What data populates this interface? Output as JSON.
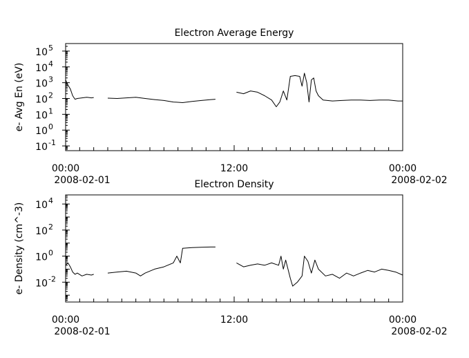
{
  "chart_data": [
    {
      "type": "line",
      "title": "Electron Average Energy",
      "ylabel": "e- Avg En (eV)",
      "yscale": "log",
      "ylim": [
        0.05,
        300000
      ],
      "yticks": [
        {
          "value": 0.1,
          "base": "10",
          "exp": "-1"
        },
        {
          "value": 1,
          "base": "10",
          "exp": "0"
        },
        {
          "value": 10,
          "base": "10",
          "exp": "1"
        },
        {
          "value": 100,
          "base": "10",
          "exp": "2"
        },
        {
          "value": 1000,
          "base": "10",
          "exp": "3"
        },
        {
          "value": 10000,
          "base": "10",
          "exp": "4"
        },
        {
          "value": 100000,
          "base": "10",
          "exp": "5"
        }
      ],
      "xlim": [
        "2008-02-01T00:00",
        "2008-02-02T00:00"
      ],
      "xticks": [
        {
          "value": "2008-02-01T00:00",
          "time": "00:00",
          "date": "2008-02-01"
        },
        {
          "value": "2008-02-01T12:00",
          "time": "12:00",
          "date": ""
        },
        {
          "value": "2008-02-02T00:00",
          "time": "00:00",
          "date": "2008-02-02"
        }
      ],
      "series": [
        {
          "values": [
            [
              "2008-02-01T00:00",
              1500
            ],
            [
              "2008-02-01T00:10",
              700
            ],
            [
              "2008-02-01T00:20",
              400
            ],
            [
              "2008-02-01T00:30",
              150
            ],
            [
              "2008-02-01T00:40",
              90
            ],
            [
              "2008-02-01T00:50",
              100
            ],
            [
              "2008-02-01T01:10",
              110
            ],
            [
              "2008-02-01T01:30",
              120
            ],
            [
              "2008-02-01T01:50",
              110
            ],
            [
              "2008-02-01T02:00",
              115
            ]
          ]
        },
        {
          "values": [
            [
              "2008-02-01T03:00",
              105
            ],
            [
              "2008-02-01T03:40",
              100
            ],
            [
              "2008-02-01T04:20",
              110
            ],
            [
              "2008-02-01T05:00",
              120
            ],
            [
              "2008-02-01T05:40",
              100
            ],
            [
              "2008-02-01T06:20",
              85
            ],
            [
              "2008-02-01T07:00",
              75
            ],
            [
              "2008-02-01T07:40",
              60
            ],
            [
              "2008-02-01T08:20",
              55
            ],
            [
              "2008-02-01T09:00",
              65
            ],
            [
              "2008-02-01T09:40",
              75
            ],
            [
              "2008-02-01T10:20",
              85
            ],
            [
              "2008-02-01T10:40",
              90
            ]
          ]
        },
        {
          "values": [
            [
              "2008-02-01T12:10",
              250
            ],
            [
              "2008-02-01T12:40",
              200
            ],
            [
              "2008-02-01T13:10",
              300
            ],
            [
              "2008-02-01T13:40",
              250
            ],
            [
              "2008-02-01T14:10",
              150
            ],
            [
              "2008-02-01T14:40",
              80
            ],
            [
              "2008-02-01T15:00",
              30
            ],
            [
              "2008-02-01T15:15",
              60
            ],
            [
              "2008-02-01T15:30",
              300
            ],
            [
              "2008-02-01T15:45",
              80
            ],
            [
              "2008-02-01T16:00",
              2500
            ],
            [
              "2008-02-01T16:20",
              2800
            ],
            [
              "2008-02-01T16:40",
              2500
            ],
            [
              "2008-02-01T16:50",
              600
            ],
            [
              "2008-02-01T17:00",
              4000
            ],
            [
              "2008-02-01T17:10",
              1000
            ],
            [
              "2008-02-01T17:20",
              60
            ],
            [
              "2008-02-01T17:30",
              1500
            ],
            [
              "2008-02-01T17:40",
              2000
            ],
            [
              "2008-02-01T17:50",
              300
            ],
            [
              "2008-02-01T18:00",
              150
            ],
            [
              "2008-02-01T18:20",
              80
            ],
            [
              "2008-02-01T19:00",
              70
            ],
            [
              "2008-02-01T19:40",
              75
            ],
            [
              "2008-02-01T20:20",
              80
            ],
            [
              "2008-02-01T21:00",
              80
            ],
            [
              "2008-02-01T21:40",
              75
            ],
            [
              "2008-02-01T22:20",
              80
            ],
            [
              "2008-02-01T23:00",
              80
            ],
            [
              "2008-02-01T23:40",
              70
            ],
            [
              "2008-02-02T00:00",
              70
            ]
          ]
        }
      ]
    },
    {
      "type": "line",
      "title": "Electron Density",
      "ylabel": "e- Density (cm^-3)",
      "yscale": "log",
      "ylim": [
        0.0003,
        50000
      ],
      "yticks": [
        {
          "value": 0.01,
          "base": "10",
          "exp": "-2"
        },
        {
          "value": 1,
          "base": "10",
          "exp": "0"
        },
        {
          "value": 100,
          "base": "10",
          "exp": "2"
        },
        {
          "value": 10000,
          "base": "10",
          "exp": "4"
        }
      ],
      "xlim": [
        "2008-02-01T00:00",
        "2008-02-02T00:00"
      ],
      "xticks": [
        {
          "value": "2008-02-01T00:00",
          "time": "00:00",
          "date": "2008-02-01"
        },
        {
          "value": "2008-02-01T12:00",
          "time": "12:00",
          "date": ""
        },
        {
          "value": "2008-02-02T00:00",
          "time": "00:00",
          "date": "2008-02-02"
        }
      ],
      "series": [
        {
          "values": [
            [
              "2008-02-01T00:00",
              0.2
            ],
            [
              "2008-02-01T00:10",
              0.3
            ],
            [
              "2008-02-01T00:20",
              0.15
            ],
            [
              "2008-02-01T00:30",
              0.06
            ],
            [
              "2008-02-01T00:40",
              0.04
            ],
            [
              "2008-02-01T00:50",
              0.05
            ],
            [
              "2008-02-01T01:10",
              0.03
            ],
            [
              "2008-02-01T01:30",
              0.04
            ],
            [
              "2008-02-01T01:50",
              0.035
            ],
            [
              "2008-02-01T02:00",
              0.04
            ]
          ]
        },
        {
          "values": [
            [
              "2008-02-01T03:00",
              0.05
            ],
            [
              "2008-02-01T03:40",
              0.06
            ],
            [
              "2008-02-01T04:20",
              0.07
            ],
            [
              "2008-02-01T05:00",
              0.05
            ],
            [
              "2008-02-01T05:20",
              0.03
            ],
            [
              "2008-02-01T05:40",
              0.05
            ],
            [
              "2008-02-01T06:20",
              0.1
            ],
            [
              "2008-02-01T07:00",
              0.15
            ],
            [
              "2008-02-01T07:40",
              0.3
            ],
            [
              "2008-02-01T07:55",
              1.0
            ],
            [
              "2008-02-01T08:10",
              0.3
            ],
            [
              "2008-02-01T08:20",
              4
            ],
            [
              "2008-02-01T09:00",
              4.5
            ],
            [
              "2008-02-01T09:40",
              4.8
            ],
            [
              "2008-02-01T10:20",
              5
            ],
            [
              "2008-02-01T10:40",
              5
            ]
          ]
        },
        {
          "values": [
            [
              "2008-02-01T12:10",
              0.3
            ],
            [
              "2008-02-01T12:40",
              0.15
            ],
            [
              "2008-02-01T13:10",
              0.2
            ],
            [
              "2008-02-01T13:40",
              0.25
            ],
            [
              "2008-02-01T14:10",
              0.2
            ],
            [
              "2008-02-01T14:40",
              0.3
            ],
            [
              "2008-02-01T15:10",
              0.2
            ],
            [
              "2008-02-01T15:20",
              1.0
            ],
            [
              "2008-02-01T15:30",
              0.1
            ],
            [
              "2008-02-01T15:40",
              0.5
            ],
            [
              "2008-02-01T16:00",
              0.02
            ],
            [
              "2008-02-01T16:10",
              0.005
            ],
            [
              "2008-02-01T16:30",
              0.01
            ],
            [
              "2008-02-01T16:50",
              0.03
            ],
            [
              "2008-02-01T17:00",
              1.0
            ],
            [
              "2008-02-01T17:15",
              0.4
            ],
            [
              "2008-02-01T17:30",
              0.05
            ],
            [
              "2008-02-01T17:45",
              0.5
            ],
            [
              "2008-02-01T18:00",
              0.1
            ],
            [
              "2008-02-01T18:30",
              0.03
            ],
            [
              "2008-02-01T19:00",
              0.04
            ],
            [
              "2008-02-01T19:30",
              0.02
            ],
            [
              "2008-02-01T20:00",
              0.05
            ],
            [
              "2008-02-01T20:30",
              0.03
            ],
            [
              "2008-02-01T21:00",
              0.05
            ],
            [
              "2008-02-01T21:30",
              0.08
            ],
            [
              "2008-02-01T22:00",
              0.06
            ],
            [
              "2008-02-01T22:30",
              0.1
            ],
            [
              "2008-02-01T23:00",
              0.08
            ],
            [
              "2008-02-01T23:30",
              0.06
            ],
            [
              "2008-02-02T00:00",
              0.035
            ]
          ]
        }
      ]
    }
  ]
}
